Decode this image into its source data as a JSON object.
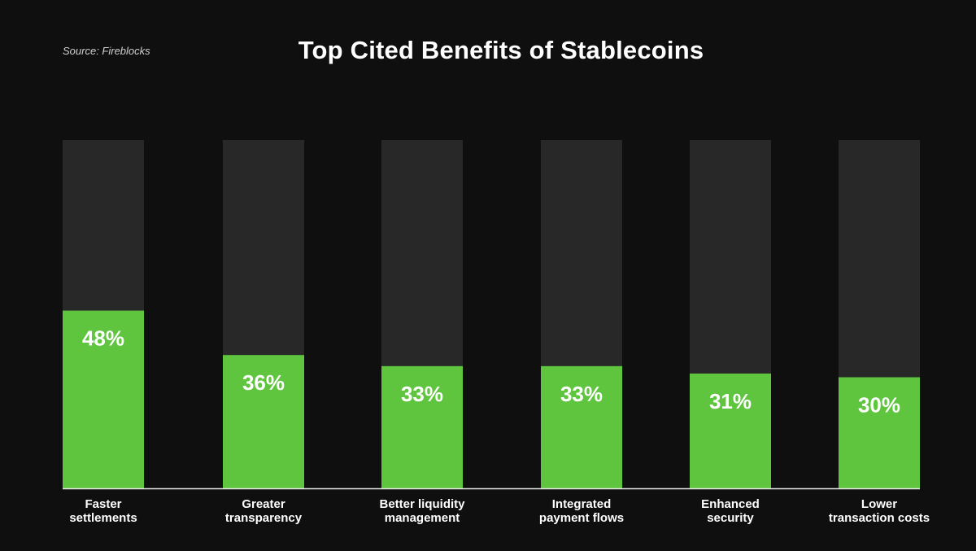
{
  "source": "Source: Fireblocks",
  "colors": {
    "background": "#0f0f0f",
    "track": "#282828",
    "fill": "#5fc43e",
    "text": "#ffffff"
  },
  "chart_data": {
    "type": "bar",
    "title": "Top Cited Benefits of Stablecoins",
    "categories": [
      [
        "Faster",
        "settlements"
      ],
      [
        "Greater",
        "transparency"
      ],
      [
        "Better liquidity",
        "management"
      ],
      [
        "Integrated",
        "payment flows"
      ],
      [
        "Enhanced",
        "security"
      ],
      [
        "Lower",
        "transaction costs"
      ]
    ],
    "values": [
      48,
      36,
      33,
      33,
      31,
      30
    ],
    "value_labels": [
      "48%",
      "36%",
      "33%",
      "33%",
      "31%",
      "30%"
    ],
    "unit": "%",
    "ylim": [
      0,
      100
    ],
    "grid": false,
    "legend": "none"
  }
}
